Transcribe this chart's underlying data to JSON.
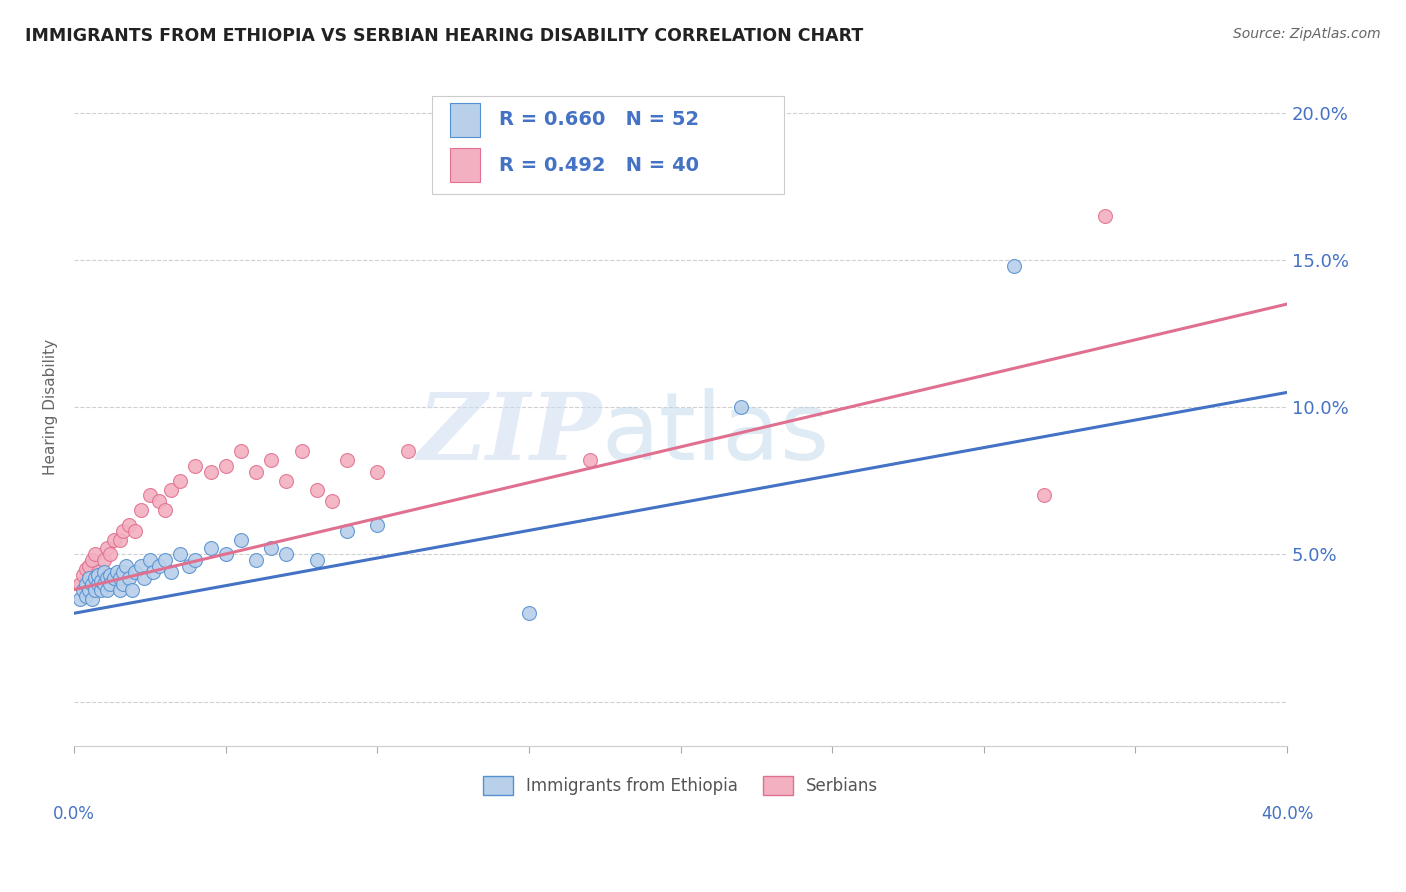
{
  "title": "IMMIGRANTS FROM ETHIOPIA VS SERBIAN HEARING DISABILITY CORRELATION CHART",
  "source": "Source: ZipAtlas.com",
  "ylabel": "Hearing Disability",
  "ytick_labels": [
    "",
    "5.0%",
    "10.0%",
    "15.0%",
    "20.0%"
  ],
  "ytick_values": [
    0.0,
    0.05,
    0.1,
    0.15,
    0.2
  ],
  "xlim": [
    0.0,
    0.4
  ],
  "ylim": [
    -0.015,
    0.215
  ],
  "legend_text_blue": "R = 0.660   N = 52",
  "legend_text_pink": "R = 0.492   N = 40",
  "legend_label_blue": "Immigrants from Ethiopia",
  "legend_label_pink": "Serbians",
  "color_blue_fill": "#b8d0ea",
  "color_pink_fill": "#f2b0c0",
  "color_blue_edge": "#5590d0",
  "color_pink_edge": "#e07090",
  "color_blue_line": "#4472c4",
  "color_pink_line": "#e07090",
  "color_text_blue": "#4472c4",
  "blue_scatter_x": [
    0.002,
    0.003,
    0.004,
    0.004,
    0.005,
    0.005,
    0.006,
    0.006,
    0.007,
    0.007,
    0.008,
    0.008,
    0.009,
    0.009,
    0.01,
    0.01,
    0.011,
    0.011,
    0.012,
    0.012,
    0.013,
    0.014,
    0.015,
    0.015,
    0.016,
    0.016,
    0.017,
    0.018,
    0.019,
    0.02,
    0.022,
    0.023,
    0.025,
    0.026,
    0.028,
    0.03,
    0.032,
    0.035,
    0.038,
    0.04,
    0.045,
    0.05,
    0.055,
    0.06,
    0.065,
    0.07,
    0.08,
    0.09,
    0.1,
    0.15,
    0.22,
    0.31
  ],
  "blue_scatter_y": [
    0.035,
    0.038,
    0.04,
    0.036,
    0.042,
    0.038,
    0.04,
    0.035,
    0.042,
    0.038,
    0.04,
    0.043,
    0.038,
    0.041,
    0.04,
    0.044,
    0.042,
    0.038,
    0.043,
    0.04,
    0.042,
    0.044,
    0.038,
    0.042,
    0.04,
    0.044,
    0.046,
    0.042,
    0.038,
    0.044,
    0.046,
    0.042,
    0.048,
    0.044,
    0.046,
    0.048,
    0.044,
    0.05,
    0.046,
    0.048,
    0.052,
    0.05,
    0.055,
    0.048,
    0.052,
    0.05,
    0.048,
    0.058,
    0.06,
    0.03,
    0.1,
    0.148
  ],
  "pink_scatter_x": [
    0.002,
    0.003,
    0.004,
    0.004,
    0.005,
    0.005,
    0.006,
    0.007,
    0.008,
    0.009,
    0.01,
    0.011,
    0.012,
    0.013,
    0.015,
    0.016,
    0.018,
    0.02,
    0.022,
    0.025,
    0.028,
    0.03,
    0.032,
    0.035,
    0.04,
    0.045,
    0.05,
    0.055,
    0.06,
    0.065,
    0.07,
    0.075,
    0.08,
    0.085,
    0.09,
    0.1,
    0.11,
    0.17,
    0.32,
    0.34
  ],
  "pink_scatter_y": [
    0.04,
    0.043,
    0.045,
    0.038,
    0.042,
    0.046,
    0.048,
    0.05,
    0.044,
    0.042,
    0.048,
    0.052,
    0.05,
    0.055,
    0.055,
    0.058,
    0.06,
    0.058,
    0.065,
    0.07,
    0.068,
    0.065,
    0.072,
    0.075,
    0.08,
    0.078,
    0.08,
    0.085,
    0.078,
    0.082,
    0.075,
    0.085,
    0.072,
    0.068,
    0.082,
    0.078,
    0.085,
    0.082,
    0.07,
    0.165
  ],
  "blue_line_x": [
    0.0,
    0.4
  ],
  "blue_line_y": [
    0.03,
    0.105
  ],
  "pink_line_x": [
    0.0,
    0.4
  ],
  "pink_line_y": [
    0.038,
    0.135
  ],
  "marker_size": 100,
  "grid_color": "#d0d0d0",
  "background_color": "#ffffff"
}
